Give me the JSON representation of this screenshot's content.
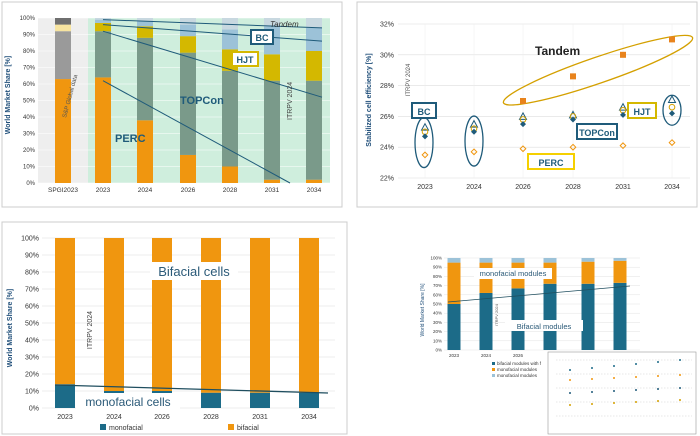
{
  "colors": {
    "perc": "#6b8f7f",
    "topcon": "#7a9a8a",
    "hjt": "#d4b800",
    "bc": "#9cc2d8",
    "tandem": "#c8d8e0",
    "spg_orange": "#f0960f",
    "spg_grey": "#9a9a9a",
    "spg_yellow": "#f7e4a0",
    "spg_dark": "#6f6f6f",
    "green_bg": "#cfeedd",
    "blue_line": "#1f5b7a",
    "bifacial": "#f0960f",
    "monofacial": "#1c6b88",
    "teal": "#1c6b88"
  },
  "chart_data": [
    {
      "type": "bar",
      "panel": "market-share-cell-technology",
      "ylabel": "World Market Share [%]",
      "ylim": [
        0,
        100
      ],
      "yticks": [
        "0%",
        "10%",
        "20%",
        "30%",
        "40%",
        "50%",
        "60%",
        "70%",
        "80%",
        "90%",
        "100%"
      ],
      "categories": [
        "SPGI2023",
        "2023",
        "2024",
        "2026",
        "2028",
        "2031",
        "2034"
      ],
      "side_note": "S&P Global data",
      "watermark": "ITRPV 2024",
      "spgi_bar": {
        "orange": 63,
        "grey": 29,
        "yellow": 4,
        "dark": 4
      },
      "series": [
        {
          "name": "PERC",
          "values": [
            null,
            64,
            38,
            17,
            10,
            2,
            2
          ]
        },
        {
          "name": "TOPCon",
          "values": [
            null,
            28,
            50,
            62,
            58,
            60,
            60
          ]
        },
        {
          "name": "HJT",
          "values": [
            null,
            5,
            7,
            10,
            13,
            16,
            18
          ]
        },
        {
          "name": "BC",
          "values": [
            null,
            2,
            3,
            7,
            12,
            17,
            14
          ]
        },
        {
          "name": "Tandem",
          "values": [
            null,
            1,
            2,
            4,
            7,
            5,
            6
          ]
        }
      ],
      "labels": {
        "perc": "PERC",
        "topcon": "TOPCon",
        "hjt": "HJT",
        "bc": "BC",
        "tandem": "Tandem"
      }
    },
    {
      "type": "scatter",
      "panel": "stabilized-cell-efficiency",
      "ylabel": "Stabilized cell efficiency [%]",
      "ylim": [
        22,
        32
      ],
      "yticks": [
        "22%",
        "24%",
        "26%",
        "28%",
        "30%",
        "32%"
      ],
      "categories": [
        "2023",
        "2024",
        "2026",
        "2028",
        "2031",
        "2034"
      ],
      "watermark": "ITRPV 2024",
      "series": [
        {
          "name": "Tandem",
          "values": [
            null,
            null,
            27.0,
            28.6,
            30.0,
            31.0
          ]
        },
        {
          "name": "BC",
          "values": [
            25.3,
            25.5,
            26.0,
            26.1,
            26.6,
            27.1
          ]
        },
        {
          "name": "HJT",
          "values": [
            25.0,
            25.2,
            25.8,
            26.0,
            26.4,
            26.6
          ]
        },
        {
          "name": "TOPCon",
          "values": [
            24.7,
            25.0,
            25.5,
            25.8,
            26.1,
            26.2
          ]
        },
        {
          "name": "PERC",
          "values": [
            23.5,
            23.7,
            23.9,
            24.0,
            24.1,
            24.3
          ]
        }
      ],
      "labels": {
        "tandem": "Tandem",
        "bc": "BC",
        "hjt": "HJT",
        "topcon": "TOPCon",
        "perc": "PERC"
      }
    },
    {
      "type": "bar",
      "panel": "market-share-bifacial-cells",
      "ylabel": "World Market Share [%]",
      "ylim": [
        0,
        100
      ],
      "yticks": [
        "0%",
        "10%",
        "20%",
        "30%",
        "40%",
        "50%",
        "60%",
        "70%",
        "80%",
        "90%",
        "100%"
      ],
      "categories": [
        "2023",
        "2024",
        "2026",
        "2028",
        "2031",
        "2034"
      ],
      "watermark": "ITRPV 2024",
      "series": [
        {
          "name": "monofacial",
          "values": [
            14,
            10,
            10,
            9,
            9,
            9
          ]
        },
        {
          "name": "bifacial",
          "values": [
            86,
            90,
            90,
            91,
            91,
            91
          ]
        }
      ],
      "labels": {
        "bifacial": "Bifacial cells",
        "monofacial": "monofacial cells"
      },
      "legend": [
        "monofacial",
        "bifacial"
      ]
    },
    {
      "type": "bar",
      "panel": "market-share-bifacial-modules",
      "ylabel": "World Market Share [%]",
      "ylim": [
        0,
        100
      ],
      "yticks": [
        "0%",
        "10%",
        "20%",
        "30%",
        "40%",
        "50%",
        "60%",
        "70%",
        "80%",
        "90%",
        "100%"
      ],
      "categories": [
        "2023",
        "2024",
        "2026",
        "2028",
        "2031",
        "2034"
      ],
      "series": [
        {
          "name": "teal",
          "values": [
            50,
            62,
            67,
            72,
            72,
            73
          ]
        },
        {
          "name": "orange",
          "values": [
            45,
            33,
            28,
            23,
            24,
            24
          ]
        },
        {
          "name": "grey",
          "values": [
            5,
            5,
            5,
            5,
            4,
            3
          ]
        }
      ],
      "labels": {
        "monofacial": "monofacial modules",
        "bifacial": "Bifacial modules",
        "watermark": "ITRPV 2024"
      },
      "inset_legend": [
        "bifacial modules with f",
        "monofacial modules",
        "monofacial modules"
      ]
    }
  ]
}
